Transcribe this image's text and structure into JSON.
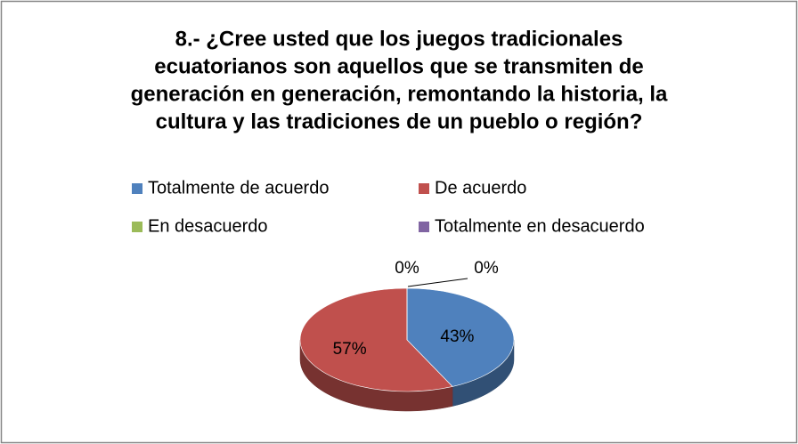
{
  "chart_data": {
    "type": "pie",
    "title": [
      "8.- ¿Cree usted que los juegos tradicionales",
      "ecuatorianos son aquellos que se transmiten de",
      "generación en generación, remontando la historia, la",
      "cultura y las tradiciones de un pueblo o región?"
    ],
    "categories": [
      "Totalmente de acuerdo",
      "De acuerdo",
      "En desacuerdo",
      "Totalmente en desacuerdo"
    ],
    "values": [
      43,
      57,
      0,
      0
    ],
    "value_labels": [
      "43%",
      "57%",
      "0%",
      "0%"
    ],
    "colors": [
      "#4f81bd",
      "#c0504d",
      "#9bbb59",
      "#8064a2"
    ],
    "legend": "top"
  }
}
